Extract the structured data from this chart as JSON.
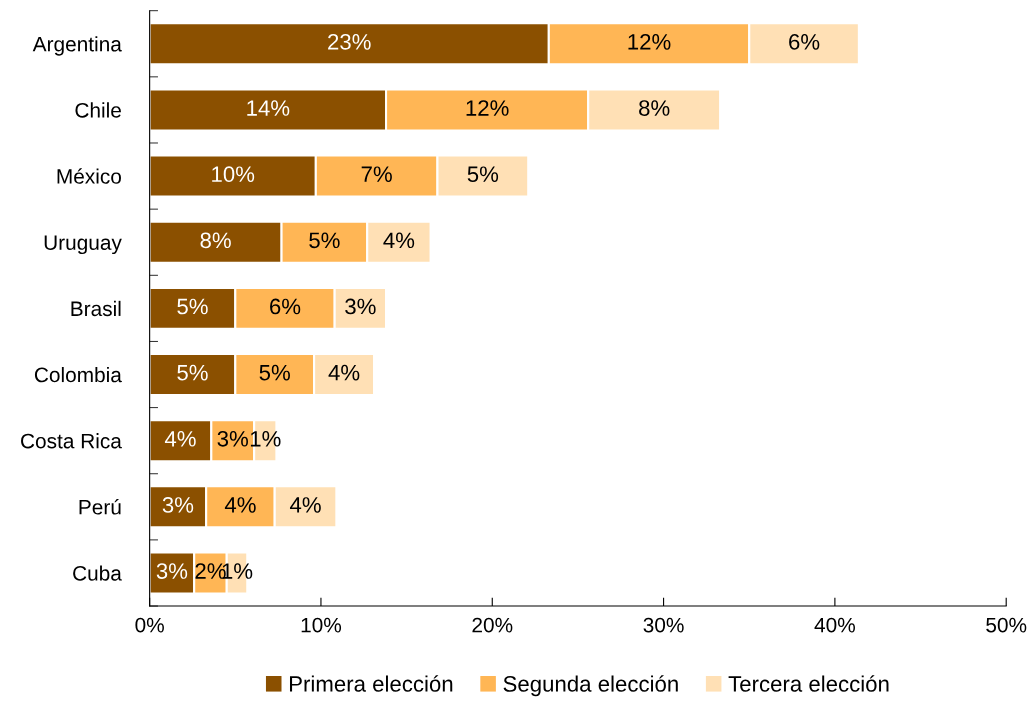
{
  "chart_data": {
    "type": "bar",
    "orientation": "horizontal",
    "stacked": true,
    "categories": [
      "Argentina",
      "Chile",
      "México",
      "Uruguay",
      "Brasil",
      "Colombia",
      "Costa Rica",
      "Perú",
      "Cuba"
    ],
    "series": [
      {
        "name": "Primera elección",
        "color": "#8b5000",
        "values": [
          23.3,
          13.8,
          9.7,
          7.7,
          5.0,
          5.0,
          3.6,
          3.3,
          2.6
        ],
        "value_labels": [
          "23%",
          "14%",
          "10%",
          "8%",
          "5%",
          "5%",
          "4%",
          "3%",
          "3%"
        ]
      },
      {
        "name": "Segunda elección",
        "color": "#ffb655",
        "values": [
          11.7,
          11.8,
          7.1,
          5.0,
          5.8,
          4.6,
          2.5,
          4.0,
          1.9
        ],
        "value_labels": [
          "12%",
          "12%",
          "7%",
          "5%",
          "6%",
          "5%",
          "3%",
          "4%",
          "2%"
        ]
      },
      {
        "name": "Tercera elección",
        "color": "#ffe0b5",
        "values": [
          6.4,
          7.7,
          5.3,
          3.7,
          3.0,
          3.5,
          1.3,
          3.6,
          1.2
        ],
        "value_labels": [
          "6%",
          "8%",
          "5%",
          "4%",
          "3%",
          "4%",
          "1%",
          "4%",
          "1%"
        ]
      }
    ],
    "xlim": [
      0,
      50
    ],
    "xticks": [
      {
        "value": 0,
        "label": "0%"
      },
      {
        "value": 10,
        "label": "10%"
      },
      {
        "value": 20,
        "label": "20%"
      },
      {
        "value": 30,
        "label": "30%"
      },
      {
        "value": 40,
        "label": "40%"
      },
      {
        "value": 50,
        "label": "50%"
      }
    ],
    "grid": false,
    "legend": "bottom"
  }
}
